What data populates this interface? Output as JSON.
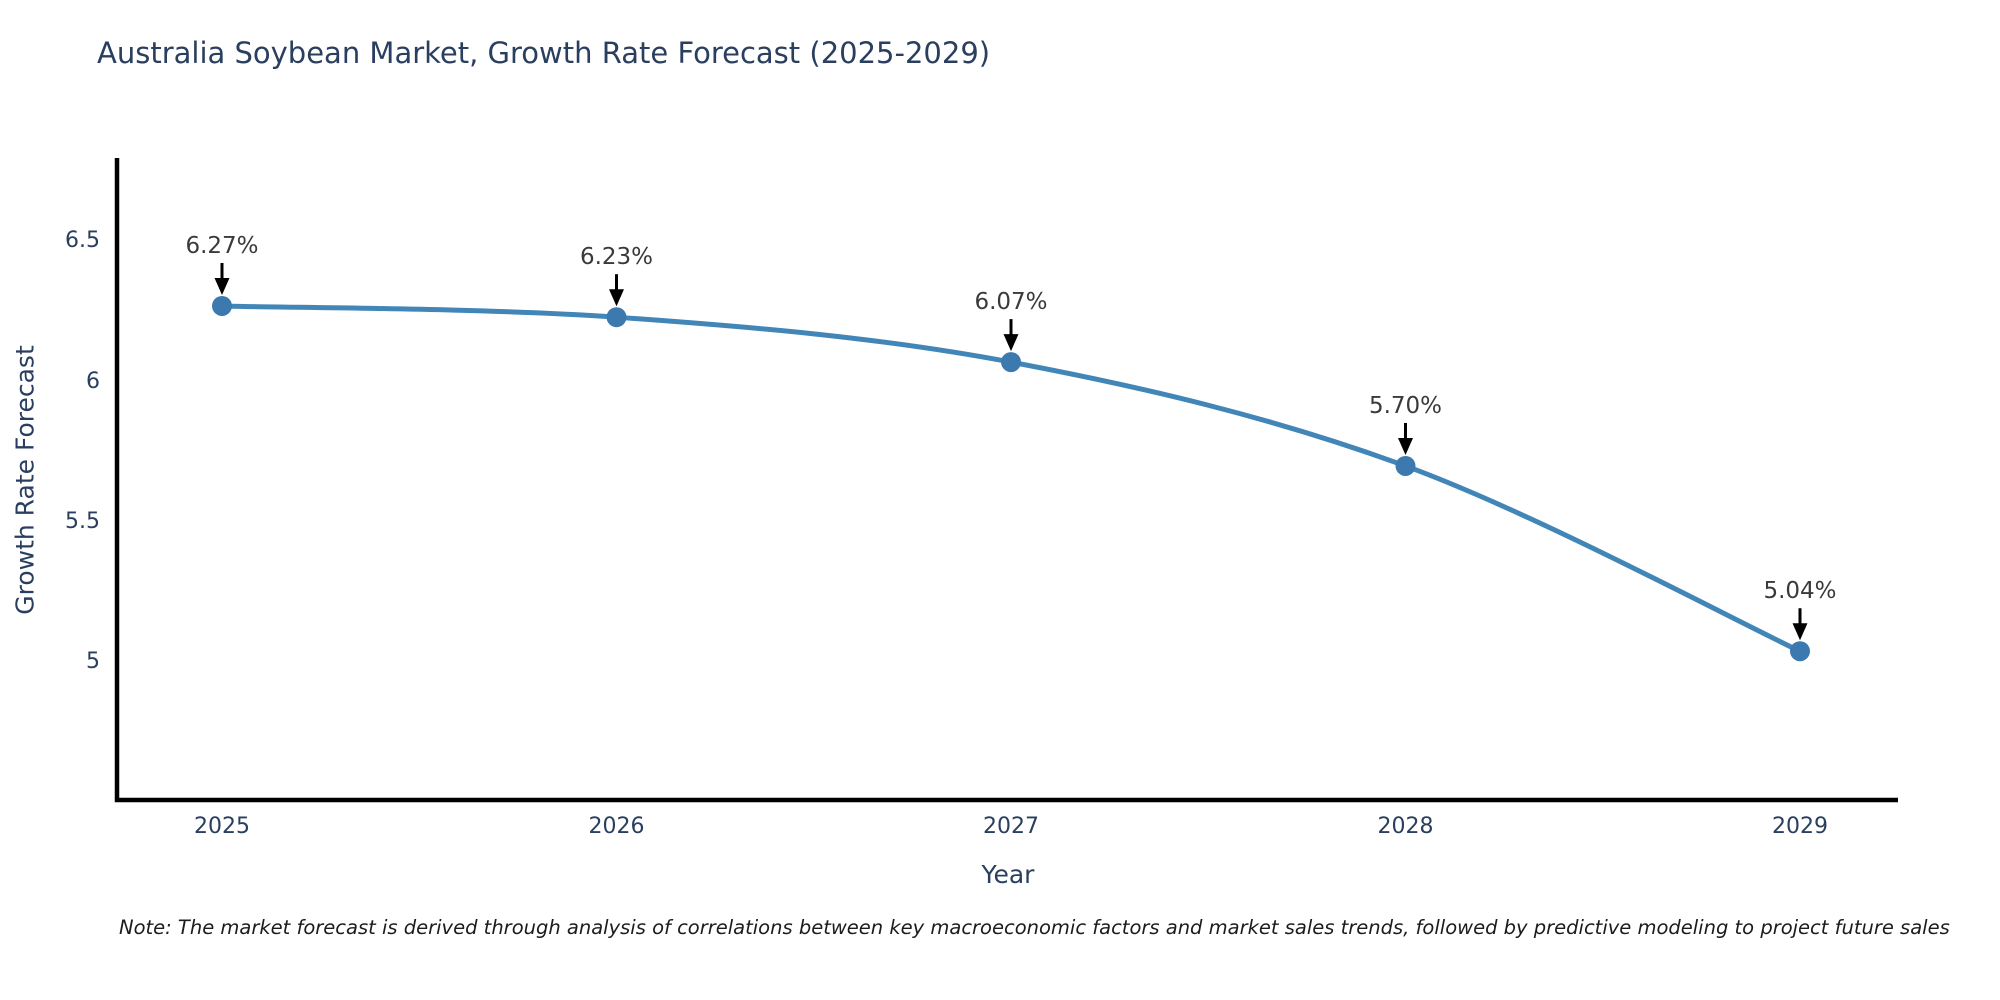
{
  "page": {
    "background": "#ffffff"
  },
  "title": "Australia Soybean Market, Growth Rate Forecast (2025-2029)",
  "note": "Note: The market forecast is derived through analysis of correlations between key macroeconomic factors and market sales trends, followed by predictive modeling to project future sales",
  "chart_data": {
    "type": "line",
    "title": "Australia Soybean Market, Growth Rate Forecast (2025-2029)",
    "xlabel": "Year",
    "ylabel": "Growth Rate Forecast",
    "x": [
      2025,
      2026,
      2027,
      2028,
      2029
    ],
    "values": [
      6.27,
      6.23,
      6.07,
      5.7,
      5.04
    ],
    "point_labels": [
      "6.27%",
      "6.23%",
      "6.07%",
      "5.70%",
      "5.04%"
    ],
    "yticks": [
      6.5,
      6,
      5.5,
      5
    ],
    "ylim": [
      4.51,
      6.79
    ],
    "grid": false,
    "legend": "none",
    "line_shape": "spline",
    "annotations_have_arrows": true,
    "colors": {
      "line": "#4286b8",
      "marker": "#3b79ae",
      "axis": "#000000",
      "axis_text": "#2a3f5f",
      "annotation_text": "#3a3a3a",
      "arrow": "#000000"
    }
  }
}
